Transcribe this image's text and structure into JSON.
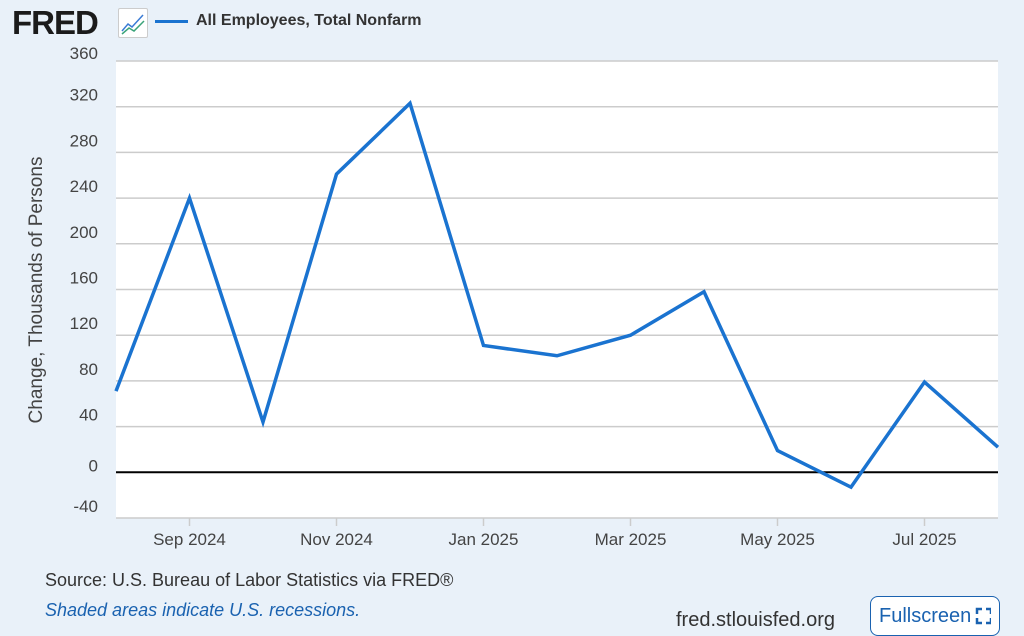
{
  "header": {
    "logo": "FRED",
    "logo_icon": "chart-line-icon",
    "series_label": "All Employees, Total Nonfarm"
  },
  "colors": {
    "line": "#1a73d0",
    "background": "#e9f1f9"
  },
  "chart_data": {
    "type": "line",
    "title": "All Employees, Total Nonfarm",
    "xlabel": "",
    "ylabel": "Change, Thousands of Persons",
    "ylim": [
      -40,
      360
    ],
    "yticks": [
      -40,
      0,
      40,
      80,
      120,
      160,
      200,
      240,
      280,
      320,
      360
    ],
    "xtick_labels": [
      "Sep 2024",
      "Nov 2024",
      "Jan 2025",
      "Mar 2025",
      "May 2025",
      "Jul 2025"
    ],
    "xtick_index": [
      1,
      3,
      5,
      7,
      9,
      11
    ],
    "grid": true,
    "series": [
      {
        "name": "All Employees, Total Nonfarm",
        "x": [
          "Aug 2024",
          "Sep 2024",
          "Oct 2024",
          "Nov 2024",
          "Dec 2024",
          "Jan 2025",
          "Feb 2025",
          "Mar 2025",
          "Apr 2025",
          "May 2025",
          "Jun 2025",
          "Jul 2025",
          "Aug 2025"
        ],
        "values": [
          71,
          240,
          44,
          261,
          323,
          111,
          102,
          120,
          158,
          19,
          -13,
          79,
          22
        ]
      }
    ]
  },
  "footer": {
    "source": "Source: U.S. Bureau of Labor Statistics via FRED®",
    "recessions": "Shaded areas indicate U.S. recessions.",
    "site": "fred.stlouisfed.org",
    "fullscreen": "Fullscreen",
    "fullscreen_icon": "expand-icon"
  }
}
